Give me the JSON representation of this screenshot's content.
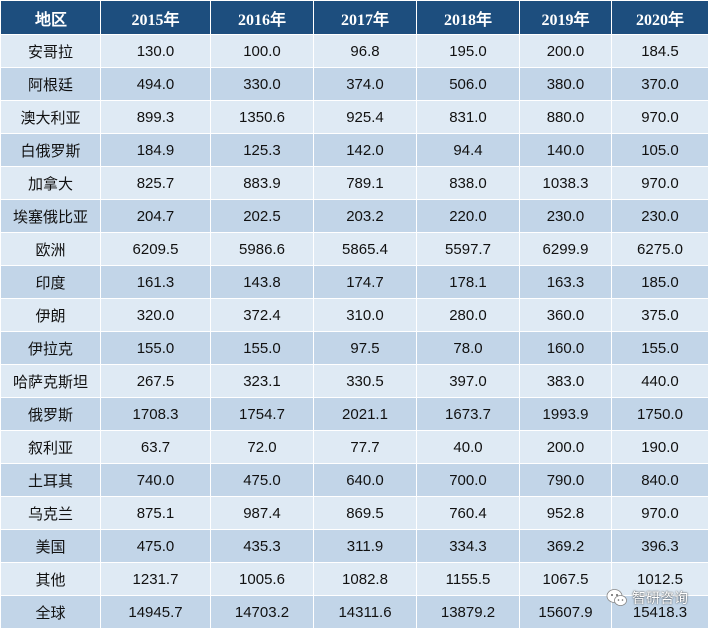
{
  "table": {
    "headers": [
      "地区",
      "2015年",
      "2016年",
      "2017年",
      "2018年",
      "2019年",
      "2020年"
    ],
    "rows": [
      [
        "安哥拉",
        "130.0",
        "100.0",
        "96.8",
        "195.0",
        "200.0",
        "184.5"
      ],
      [
        "阿根廷",
        "494.0",
        "330.0",
        "374.0",
        "506.0",
        "380.0",
        "370.0"
      ],
      [
        "澳大利亚",
        "899.3",
        "1350.6",
        "925.4",
        "831.0",
        "880.0",
        "970.0"
      ],
      [
        "白俄罗斯",
        "184.9",
        "125.3",
        "142.0",
        "94.4",
        "140.0",
        "105.0"
      ],
      [
        "加拿大",
        "825.7",
        "883.9",
        "789.1",
        "838.0",
        "1038.3",
        "970.0"
      ],
      [
        "埃塞俄比亚",
        "204.7",
        "202.5",
        "203.2",
        "220.0",
        "230.0",
        "230.0"
      ],
      [
        "欧洲",
        "6209.5",
        "5986.6",
        "5865.4",
        "5597.7",
        "6299.9",
        "6275.0"
      ],
      [
        "印度",
        "161.3",
        "143.8",
        "174.7",
        "178.1",
        "163.3",
        "185.0"
      ],
      [
        "伊朗",
        "320.0",
        "372.4",
        "310.0",
        "280.0",
        "360.0",
        "375.0"
      ],
      [
        "伊拉克",
        "155.0",
        "155.0",
        "97.5",
        "78.0",
        "160.0",
        "155.0"
      ],
      [
        "哈萨克斯坦",
        "267.5",
        "323.1",
        "330.5",
        "397.0",
        "383.0",
        "440.0"
      ],
      [
        "俄罗斯",
        "1708.3",
        "1754.7",
        "2021.1",
        "1673.7",
        "1993.9",
        "1750.0"
      ],
      [
        "叙利亚",
        "63.7",
        "72.0",
        "77.7",
        "40.0",
        "200.0",
        "190.0"
      ],
      [
        "土耳其",
        "740.0",
        "475.0",
        "640.0",
        "700.0",
        "790.0",
        "840.0"
      ],
      [
        "乌克兰",
        "875.1",
        "987.4",
        "869.5",
        "760.4",
        "952.8",
        "970.0"
      ],
      [
        "美国",
        "475.0",
        "435.3",
        "311.9",
        "334.3",
        "369.2",
        "396.3"
      ],
      [
        "其他",
        "1231.7",
        "1005.6",
        "1082.8",
        "1155.5",
        "1067.5",
        "1012.5"
      ],
      [
        "全球",
        "14945.7",
        "14703.2",
        "14311.6",
        "13879.2",
        "15607.9",
        "15418.3"
      ]
    ]
  },
  "watermark": {
    "text": "智研咨询",
    "icon": "wechat-icon"
  },
  "colors": {
    "header_bg": "#1d4e7e",
    "row_light": "#dfeaf4",
    "row_dark": "#c2d5e8"
  }
}
